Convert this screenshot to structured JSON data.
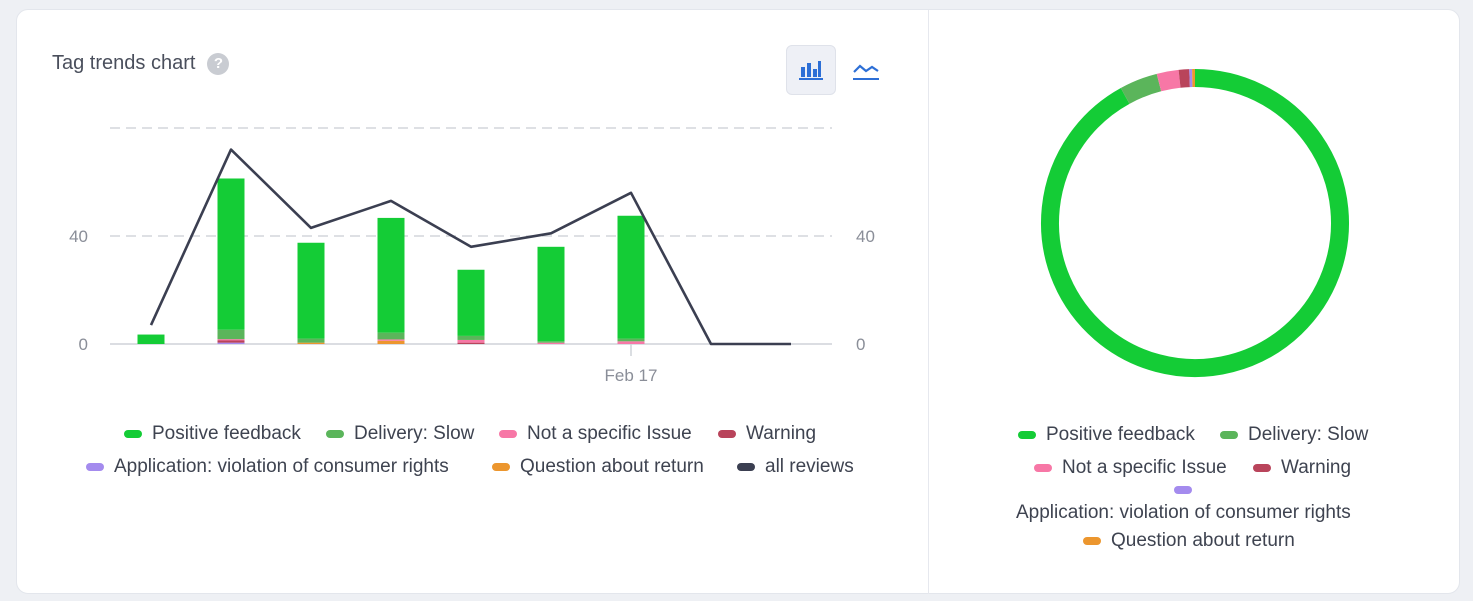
{
  "title": "Tag trends chart",
  "help_icon_glyph": "?",
  "toolbar": {
    "bar_icon": "bar-chart-icon",
    "line_icon": "line-chart-icon"
  },
  "colors": {
    "positive": "#14cc36",
    "delivery": "#5bb55b",
    "notspecific": "#f777a6",
    "warning": "#b9445b",
    "application": "#a48bee",
    "question": "#ec962e",
    "all": "#3b3f51"
  },
  "chart_data": [
    {
      "type": "bar",
      "stacked": true,
      "x_tick_labels": [
        "Feb 17"
      ],
      "y_tick_labels": [
        "0",
        "40"
      ],
      "ylim": [
        0,
        80
      ],
      "grid": true,
      "categories": [
        "1",
        "2",
        "3",
        "4",
        "5",
        "6",
        "7",
        "8",
        "9"
      ],
      "series": [
        {
          "name": "Application: violation of consumer rights",
          "key": "application",
          "values": [
            0,
            0.5,
            0,
            0,
            0,
            0,
            0,
            0,
            0
          ]
        },
        {
          "name": "Question about return",
          "key": "question",
          "values": [
            0,
            0,
            0.5,
            1.2,
            0,
            0,
            0,
            0,
            0
          ]
        },
        {
          "name": "Warning",
          "key": "warning",
          "values": [
            0,
            0.8,
            0,
            0,
            0.5,
            0,
            0,
            0,
            0
          ]
        },
        {
          "name": "Not a specific Issue",
          "key": "notspecific",
          "values": [
            0,
            0.5,
            0,
            0.5,
            1,
            0.5,
            1,
            0,
            0
          ]
        },
        {
          "name": "Delivery: Slow",
          "key": "delivery",
          "values": [
            0,
            3.5,
            1.5,
            2.5,
            1.5,
            0.5,
            1,
            0,
            0
          ]
        },
        {
          "name": "Positive feedback",
          "key": "positive",
          "values": [
            3.5,
            56,
            35.5,
            42.5,
            24.5,
            35,
            45.5,
            0,
            0
          ]
        }
      ],
      "line": {
        "name": "all reviews",
        "key": "all",
        "values": [
          7,
          72,
          43,
          53,
          36,
          41,
          56,
          0,
          0
        ]
      }
    },
    {
      "type": "pie",
      "donut": true,
      "slices": [
        {
          "name": "Positive feedback",
          "key": "positive",
          "value": 92
        },
        {
          "name": "Delivery: Slow",
          "key": "delivery",
          "value": 4
        },
        {
          "name": "Not a specific Issue",
          "key": "notspecific",
          "value": 2.3
        },
        {
          "name": "Warning",
          "key": "warning",
          "value": 1.1
        },
        {
          "name": "Application: violation of consumer rights",
          "key": "application",
          "value": 0.3
        },
        {
          "name": "Question about return",
          "key": "question",
          "value": 0.3
        }
      ]
    }
  ],
  "legend_left": [
    {
      "label": "Positive feedback",
      "key": "positive"
    },
    {
      "label": "Delivery: Slow",
      "key": "delivery"
    },
    {
      "label": "Not a specific Issue",
      "key": "notspecific"
    },
    {
      "label": "Warning",
      "key": "warning"
    },
    {
      "label": "Application: violation of consumer rights",
      "key": "application"
    },
    {
      "label": "Question about return",
      "key": "question"
    },
    {
      "label": "all reviews",
      "key": "all"
    }
  ],
  "legend_right": [
    {
      "label": "Positive feedback",
      "key": "positive"
    },
    {
      "label": "Delivery: Slow",
      "key": "delivery"
    },
    {
      "label": "Not a specific Issue",
      "key": "notspecific"
    },
    {
      "label": "Warning",
      "key": "warning"
    },
    {
      "label": "Application: violation of consumer rights",
      "key": "application"
    },
    {
      "label": "Question about return",
      "key": "question"
    }
  ]
}
